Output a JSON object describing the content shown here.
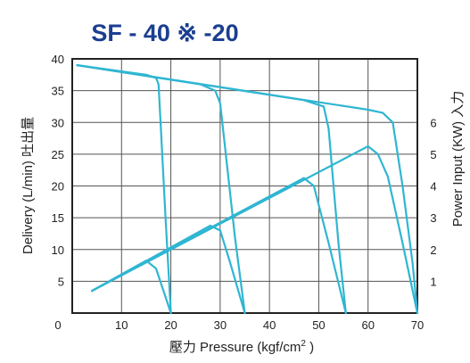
{
  "chart_data": {
    "type": "line",
    "title": "SF - 40 ※ -20",
    "xlabel": "壓力 Pressure (kgf/cm",
    "xlabel_sup": "2",
    "xlabel_end": " )",
    "ylabel_left": "Delivery (L/min) 吐出量",
    "ylabel_right": "Power Input (KW) 入力",
    "xlim": [
      0,
      70
    ],
    "ylim_left": [
      0,
      40
    ],
    "ylim_right": [
      0,
      8
    ],
    "x_ticks": [
      "0",
      "10",
      "20",
      "30",
      "40",
      "50",
      "60",
      "70"
    ],
    "y_ticks_left": [
      "0",
      "5",
      "10",
      "15",
      "20",
      "25",
      "30",
      "35",
      "40"
    ],
    "y_ticks_right": [
      "1",
      "2",
      "3",
      "4",
      "5",
      "6"
    ],
    "grid": true,
    "line_color": "#2fb6d2",
    "series": [
      {
        "axis": "left",
        "x": [
          1,
          15,
          17,
          17.5,
          19,
          20,
          20
        ],
        "y": [
          39,
          37.5,
          37,
          36,
          14,
          0,
          0
        ]
      },
      {
        "axis": "left",
        "x": [
          1,
          26,
          29,
          30,
          33,
          35,
          35
        ],
        "y": [
          39,
          36,
          35,
          33,
          12,
          0,
          0
        ]
      },
      {
        "axis": "left",
        "x": [
          1,
          47,
          51,
          52,
          54,
          55.5
        ],
        "y": [
          39,
          33.5,
          32.5,
          29,
          11,
          0
        ]
      },
      {
        "axis": "left",
        "x": [
          1,
          60,
          63,
          65,
          67,
          69,
          70
        ],
        "y": [
          39,
          32,
          31.5,
          30,
          20,
          8,
          0
        ]
      },
      {
        "axis": "right",
        "x": [
          4,
          15,
          17,
          20
        ],
        "y": [
          0.7,
          1.65,
          1.4,
          0
        ]
      },
      {
        "axis": "right",
        "x": [
          4,
          28,
          30,
          32,
          35
        ],
        "y": [
          0.7,
          2.75,
          2.6,
          1.6,
          0
        ]
      },
      {
        "axis": "right",
        "x": [
          4,
          47,
          49,
          52,
          55.5
        ],
        "y": [
          0.7,
          4.25,
          4.0,
          2.2,
          0
        ]
      },
      {
        "axis": "right",
        "x": [
          4,
          60,
          62,
          64,
          67,
          70
        ],
        "y": [
          0.7,
          5.25,
          5.0,
          4.3,
          2.2,
          0
        ]
      }
    ]
  }
}
